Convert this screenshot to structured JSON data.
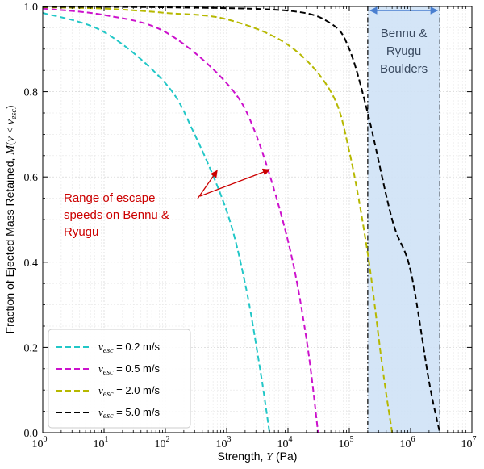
{
  "chart_data": {
    "type": "line",
    "xlabel": "Strength, Y (Pa)",
    "ylabel": "Fraction of Ejected Mass Retained, M(v < v_esc)",
    "xscale": "log",
    "xlim": [
      1,
      10000000
    ],
    "ylim": [
      0.0,
      1.0
    ],
    "x_tick_labels": [
      "10^0",
      "10^1",
      "10^2",
      "10^3",
      "10^4",
      "10^5",
      "10^6",
      "10^7"
    ],
    "y_tick_labels": [
      "0.0",
      "0.2",
      "0.4",
      "0.6",
      "0.8",
      "1.0"
    ],
    "grid": true,
    "legend_position": "lower-left",
    "series": [
      {
        "name": "v_esc = 0.2 m/s",
        "color": "#22c7c7",
        "style": "dashed",
        "x": [
          1,
          10,
          100,
          300,
          1000,
          2000,
          3500,
          5000
        ],
        "y": [
          0.985,
          0.94,
          0.82,
          0.7,
          0.52,
          0.35,
          0.15,
          0.0
        ]
      },
      {
        "name": "v_esc = 0.5 m/s",
        "color": "#cc11cc",
        "style": "dashed",
        "x": [
          1,
          10,
          100,
          1000,
          3000,
          10000,
          20000,
          31000
        ],
        "y": [
          0.995,
          0.98,
          0.94,
          0.82,
          0.7,
          0.45,
          0.22,
          0.0
        ]
      },
      {
        "name": "v_esc = 2.0 m/s",
        "color": "#b6b800",
        "style": "dashed",
        "x": [
          1,
          10,
          100,
          1000,
          10000,
          50000,
          100000,
          200000,
          350000,
          500000
        ],
        "y": [
          0.998,
          0.995,
          0.985,
          0.97,
          0.91,
          0.8,
          0.66,
          0.42,
          0.15,
          0.0
        ]
      },
      {
        "name": "v_esc = 5.0 m/s",
        "color": "#000000",
        "style": "dashed",
        "x": [
          1,
          100,
          10000,
          50000,
          100000,
          200000,
          500000,
          1000000,
          2000000,
          3000000
        ],
        "y": [
          0.999,
          0.998,
          0.99,
          0.96,
          0.9,
          0.75,
          0.5,
          0.38,
          0.12,
          0.0
        ]
      }
    ],
    "shaded_region": {
      "x_range": [
        200000,
        3000000
      ],
      "label": "Bennu & Ryugu Boulders",
      "label_lines": [
        "Bennu &",
        "Ryugu",
        "Boulders"
      ],
      "fill": "#cfe2f6",
      "arrow_color": "#4a7fd0"
    },
    "annotation": {
      "lines": [
        "Range of escape",
        "speeds on Bennu &",
        "Ryugu"
      ],
      "color": "#cc0000",
      "arrow_targets": [
        {
          "x": 700,
          "y": 0.615
        },
        {
          "x": 5000,
          "y": 0.617
        }
      ]
    }
  }
}
